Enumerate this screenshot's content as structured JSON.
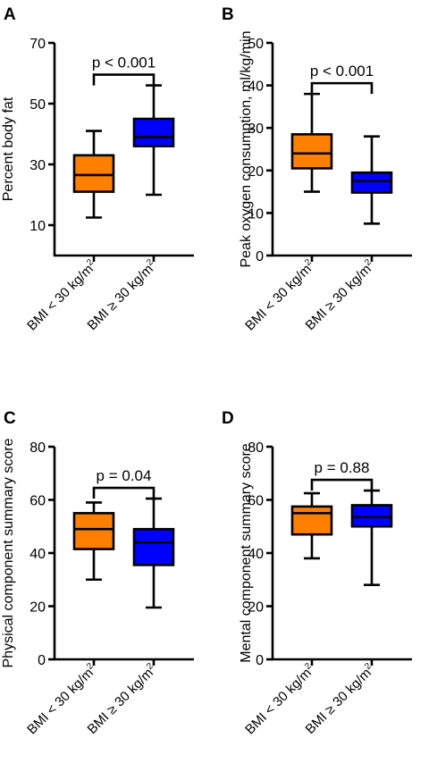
{
  "chart_data": [
    {
      "panel": "A",
      "type": "boxplot",
      "ylabel": "Percent body fat",
      "ylim": [
        0,
        70
      ],
      "yticks": [
        10,
        30,
        50,
        70
      ],
      "categories": [
        "BMI < 30 kg/m2",
        "BMI ≥ 30 kg/m2"
      ],
      "boxes": [
        {
          "color": "#ff8000",
          "min": 12.5,
          "q1": 21,
          "median": 26.5,
          "q3": 33,
          "max": 41
        },
        {
          "color": "#0000ff",
          "min": 20,
          "q1": 36,
          "median": 39,
          "q3": 45,
          "max": 56
        }
      ],
      "annotation": "p < 0.001"
    },
    {
      "panel": "B",
      "type": "boxplot",
      "ylabel": "Peak oxygen consumption, ml/kg/min",
      "ylim": [
        0,
        50
      ],
      "yticks": [
        0,
        10,
        20,
        30,
        40,
        50
      ],
      "categories": [
        "BMI < 30 kg/m2",
        "BMI ≥ 30 kg/m2"
      ],
      "boxes": [
        {
          "color": "#ff8000",
          "min": 15,
          "q1": 20.5,
          "median": 24,
          "q3": 28.5,
          "max": 38
        },
        {
          "color": "#0000ff",
          "min": 7.5,
          "q1": 14.8,
          "median": 17.5,
          "q3": 19.5,
          "max": 28
        }
      ],
      "annotation": "p < 0.001"
    },
    {
      "panel": "C",
      "type": "boxplot",
      "ylabel": "Physical component summary score",
      "ylim": [
        0,
        80
      ],
      "yticks": [
        0,
        20,
        40,
        60,
        80
      ],
      "categories": [
        "BMI < 30 kg/m2",
        "BMI ≥ 30 kg/m2"
      ],
      "boxes": [
        {
          "color": "#ff8000",
          "min": 30,
          "q1": 41.5,
          "median": 49,
          "q3": 55,
          "max": 59
        },
        {
          "color": "#0000ff",
          "min": 19.5,
          "q1": 35.5,
          "median": 44,
          "q3": 49,
          "max": 60.5
        }
      ],
      "annotation": "p = 0.04"
    },
    {
      "panel": "D",
      "type": "boxplot",
      "ylabel": "Mental component summary score",
      "ylim": [
        0,
        80
      ],
      "yticks": [
        0,
        20,
        40,
        60,
        80
      ],
      "categories": [
        "BMI < 30 kg/m2",
        "BMI ≥ 30 kg/m2"
      ],
      "boxes": [
        {
          "color": "#ff8000",
          "min": 38,
          "q1": 47,
          "median": 55,
          "q3": 57.5,
          "max": 62.5
        },
        {
          "color": "#0000ff",
          "min": 28,
          "q1": 50,
          "median": 53.5,
          "q3": 58,
          "max": 63.5
        }
      ],
      "annotation": "p = 0.88"
    }
  ]
}
